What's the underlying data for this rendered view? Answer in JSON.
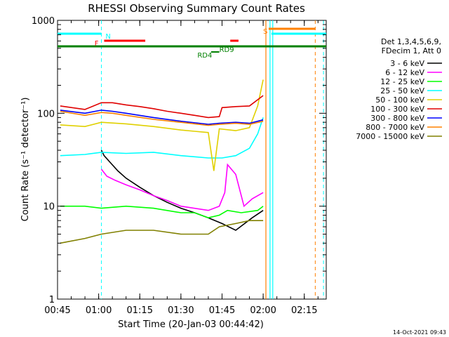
{
  "chart_data": {
    "type": "line",
    "title": "RHESSI Observing Summary Count Rates",
    "xlabel": "Start Time (20-Jan-03 00:44:42)",
    "ylabel": "Count Rate (s⁻¹ detector⁻¹)",
    "yscale": "log",
    "ylim": [
      1,
      1000
    ],
    "xlim_minutes": [
      45,
      143
    ],
    "x_ticks": [
      "00:45",
      "01:00",
      "01:15",
      "01:30",
      "01:45",
      "02:00",
      "02:15"
    ],
    "y_ticks": [
      "1",
      "10",
      "100",
      "1000"
    ],
    "legend_header": [
      "Det 1,3,4,5,6,9,",
      "FDecim 1, Att 0"
    ],
    "legend_position": "right",
    "footer_timestamp": "14-Oct-2021 09:43",
    "annotations": [
      {
        "text": "N",
        "color": "#00ffff"
      },
      {
        "text": "F",
        "color": "#ff0000"
      },
      {
        "text": "S",
        "color": "#ff8000"
      },
      {
        "text": "RD9",
        "color": "#008000"
      },
      {
        "text": "RD4",
        "color": "#008000"
      }
    ],
    "series": [
      {
        "name": "3 - 6 keV",
        "color": "#000000",
        "x": [
          61,
          62,
          64,
          67,
          70,
          75,
          80,
          85,
          90,
          95,
          100,
          105,
          110,
          116,
          120
        ],
        "values": [
          40,
          35,
          30,
          24,
          20,
          16,
          13,
          11,
          9.5,
          8.5,
          7.5,
          6.5,
          5.5,
          7.5,
          9
        ]
      },
      {
        "name": "6 - 12 keV",
        "color": "#ff00ff",
        "x": [
          61,
          63,
          66,
          70,
          75,
          80,
          85,
          90,
          100,
          104,
          106,
          107,
          110,
          113,
          116,
          120
        ],
        "values": [
          25,
          21,
          19,
          17,
          15,
          13,
          11.5,
          10,
          9,
          10,
          14,
          28,
          22,
          10,
          12,
          14
        ]
      },
      {
        "name": "12 - 25 keV",
        "color": "#00ff00",
        "x": [
          46,
          55,
          61,
          70,
          80,
          90,
          95,
          100,
          104,
          107,
          112,
          118,
          120
        ],
        "values": [
          10,
          10,
          9.5,
          10,
          9.5,
          8.5,
          8.5,
          7.5,
          8,
          9,
          8.5,
          9,
          10
        ]
      },
      {
        "name": "25 - 50 keV",
        "color": "#00ffff",
        "x": [
          46,
          55,
          61,
          70,
          80,
          90,
          95,
          100,
          105,
          110,
          115,
          118,
          120
        ],
        "values": [
          35,
          36,
          38,
          37,
          38,
          35,
          34,
          33,
          33,
          35,
          42,
          60,
          90
        ]
      },
      {
        "name": "50 - 100 keV",
        "color": "#e0d000",
        "x": [
          46,
          55,
          61,
          70,
          80,
          90,
          95,
          100,
          102,
          104,
          110,
          115,
          118,
          120
        ],
        "values": [
          75,
          72,
          80,
          77,
          72,
          66,
          64,
          62,
          24,
          68,
          65,
          70,
          120,
          230
        ]
      },
      {
        "name": "100 - 300 keV",
        "color": "#e00000",
        "x": [
          46,
          55,
          61,
          65,
          70,
          75,
          80,
          85,
          90,
          95,
          100,
          104,
          105,
          110,
          115,
          120
        ],
        "values": [
          120,
          110,
          130,
          130,
          123,
          118,
          112,
          105,
          100,
          95,
          90,
          92,
          115,
          118,
          120,
          155
        ]
      },
      {
        "name": "300 - 800 keV",
        "color": "#0000ff",
        "x": [
          46,
          55,
          61,
          65,
          70,
          80,
          90,
          100,
          104,
          110,
          115,
          120
        ],
        "values": [
          108,
          100,
          108,
          105,
          100,
          90,
          82,
          76,
          78,
          80,
          78,
          85
        ]
      },
      {
        "name": "800 - 7000 keV",
        "color": "#ff8000",
        "x": [
          46,
          55,
          61,
          65,
          70,
          80,
          90,
          100,
          104,
          110,
          115,
          120
        ],
        "values": [
          105,
          95,
          102,
          100,
          95,
          86,
          80,
          74,
          76,
          78,
          76,
          82
        ]
      },
      {
        "name": "7000 - 15000 keV",
        "color": "#808000",
        "x": [
          46,
          55,
          61,
          70,
          80,
          90,
          95,
          100,
          104,
          110,
          115,
          120
        ],
        "values": [
          4,
          4.5,
          5,
          5.5,
          5.5,
          5,
          5,
          5,
          6,
          6.5,
          7,
          7
        ]
      }
    ]
  }
}
